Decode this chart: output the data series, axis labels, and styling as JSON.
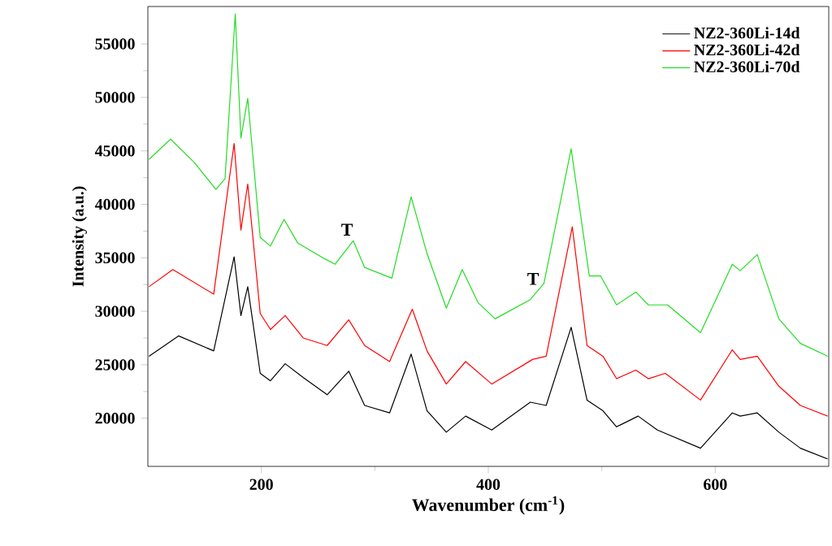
{
  "chart_data": {
    "type": "line",
    "xlabel": "Wavenumber (cm$^{-1}$)",
    "ylabel": "Intensity (a.u.)",
    "xlim": [
      100,
      700
    ],
    "ylim": [
      15500,
      58500
    ],
    "xticks": [
      200,
      400,
      600
    ],
    "yticks": [
      20000,
      25000,
      30000,
      35000,
      40000,
      45000,
      50000,
      55000
    ],
    "legend": "top right",
    "annotations": [
      {
        "text": "T",
        "x": 281,
        "y": 36600
      },
      {
        "text": "T",
        "x": 445,
        "y": 32000
      }
    ],
    "series": [
      {
        "name": "NZ2-360Li-14d",
        "color": "#000000",
        "x": [
          101,
          127,
          158,
          176,
          182,
          188,
          199,
          208,
          221,
          237,
          258,
          277,
          291,
          313,
          332,
          346,
          363,
          380,
          403,
          437,
          451,
          473,
          487,
          501,
          513,
          532,
          549,
          587,
          615,
          622,
          637,
          656,
          675,
          699
        ],
        "values": [
          25800,
          27700,
          26300,
          35100,
          29600,
          32300,
          24200,
          23500,
          25100,
          23800,
          22200,
          24400,
          21200,
          20500,
          26000,
          20700,
          18700,
          20200,
          18900,
          21500,
          21200,
          28500,
          21700,
          20700,
          19200,
          20200,
          18900,
          17200,
          20500,
          20200,
          20500,
          18700,
          17200,
          16200
        ]
      },
      {
        "name": "NZ2-360Li-42d",
        "color": "#ff0000",
        "x": [
          101,
          122,
          158,
          176,
          182,
          188,
          199,
          208,
          221,
          237,
          258,
          277,
          291,
          313,
          333,
          346,
          363,
          380,
          403,
          439,
          451,
          474,
          487,
          501,
          513,
          530,
          541,
          556,
          587,
          615,
          622,
          637,
          656,
          675,
          699
        ],
        "values": [
          32300,
          33900,
          31600,
          45700,
          37600,
          41900,
          29800,
          28300,
          29600,
          27500,
          26800,
          29200,
          26800,
          25300,
          30200,
          26300,
          23200,
          25300,
          23200,
          25500,
          25800,
          37900,
          26800,
          25800,
          23700,
          24500,
          23700,
          24200,
          21700,
          26400,
          25500,
          25800,
          23000,
          21200,
          20200
        ]
      },
      {
        "name": "NZ2-360Li-70d",
        "color": "#22dd22",
        "x": [
          101,
          120,
          141,
          160,
          168,
          177,
          182,
          188,
          199,
          208,
          220,
          232,
          256,
          265,
          281,
          291,
          315,
          332,
          346,
          363,
          377,
          391,
          406,
          437,
          449,
          473,
          489,
          499,
          513,
          530,
          541,
          558,
          587,
          615,
          622,
          637,
          656,
          675,
          699
        ],
        "values": [
          44200,
          46100,
          43900,
          41400,
          42400,
          57800,
          46200,
          49900,
          36900,
          36100,
          38600,
          36400,
          34900,
          34400,
          36600,
          34100,
          33100,
          40700,
          35400,
          30300,
          33900,
          30800,
          29300,
          31100,
          32600,
          45200,
          33300,
          33300,
          30600,
          31800,
          30600,
          30600,
          28000,
          34400,
          33800,
          35300,
          29300,
          27000,
          25800
        ]
      }
    ]
  }
}
